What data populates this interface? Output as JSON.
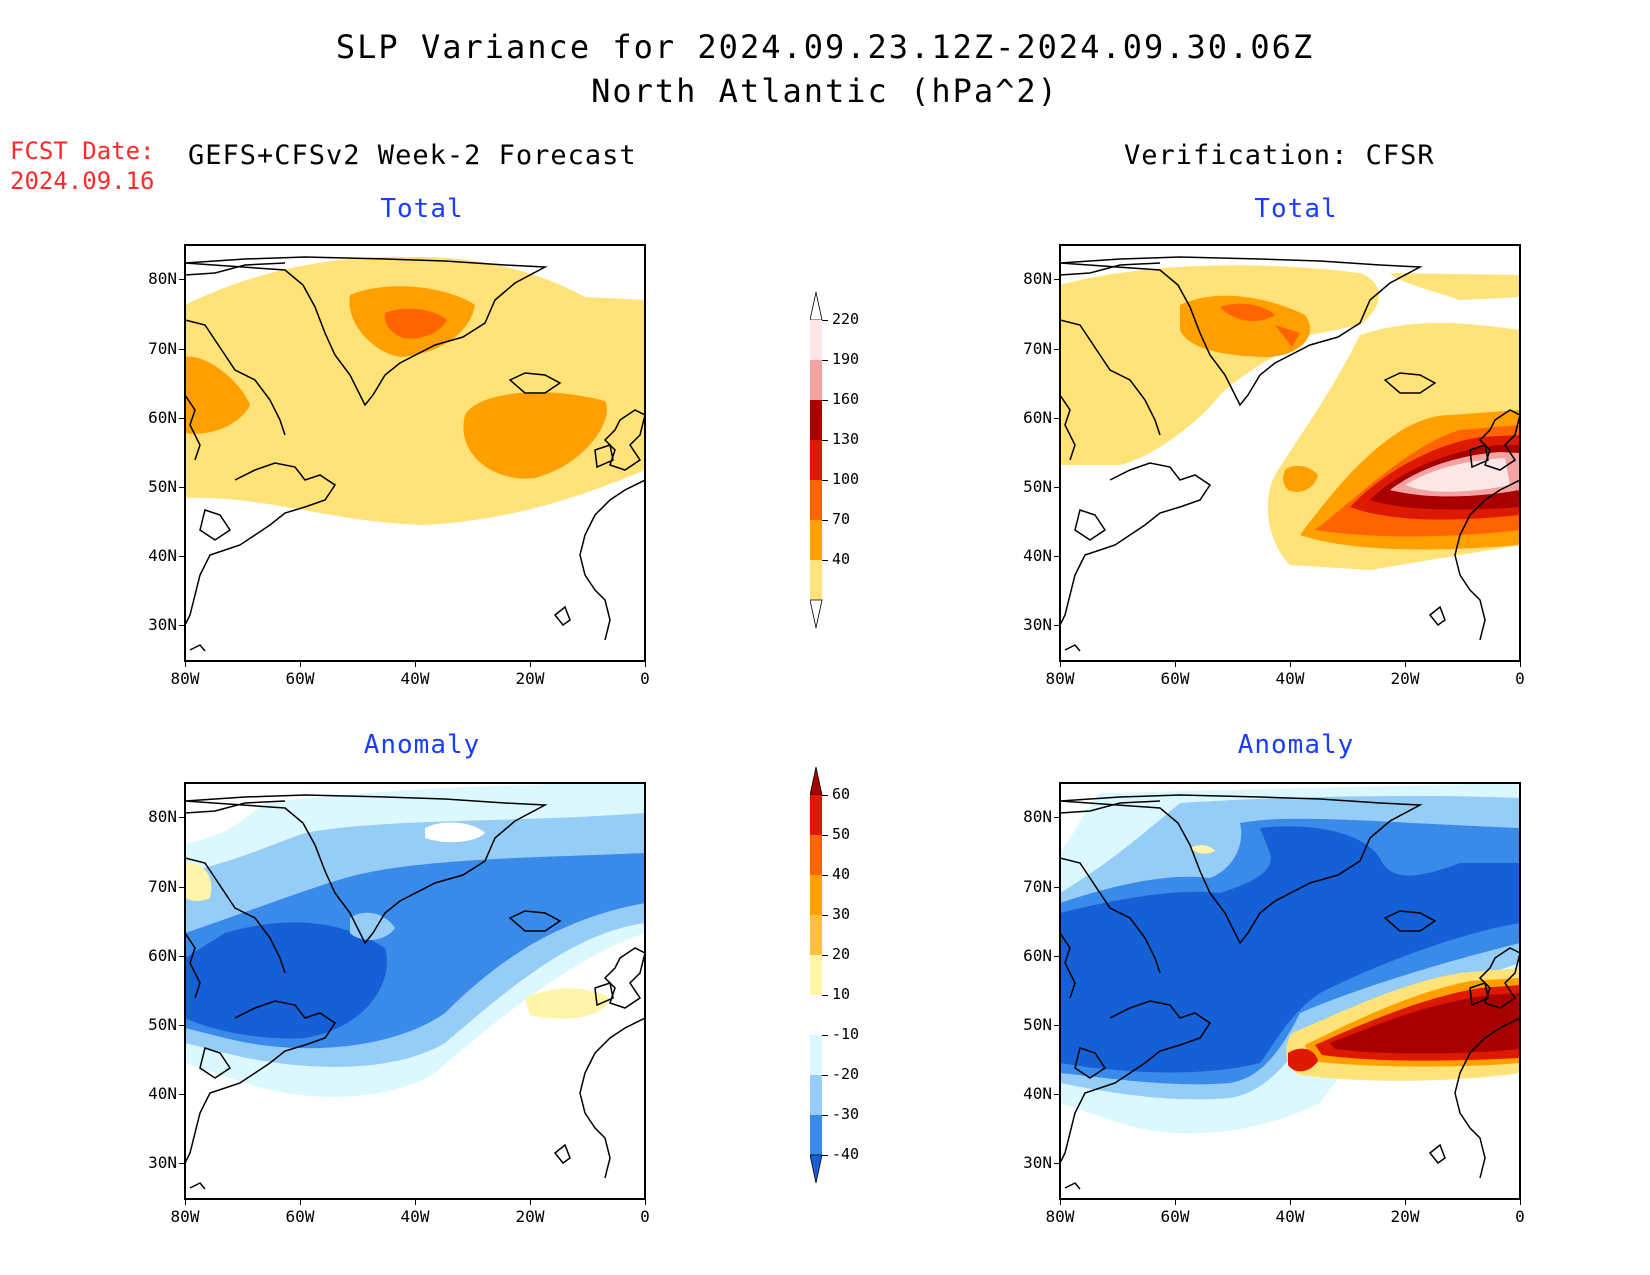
{
  "title": {
    "line1": "SLP Variance for 2024.09.23.12Z-2024.09.30.06Z",
    "line2": "North Atlantic (hPa^2)"
  },
  "fcst": {
    "label": "FCST Date:",
    "date": "2024.09.16"
  },
  "columns": {
    "left": "GEFS+CFSv2 Week-2 Forecast",
    "right": "Verification: CFSR"
  },
  "panels": {
    "total_label": "Total",
    "anomaly_label": "Anomaly"
  },
  "axes": {
    "lat_labels": [
      "80N",
      "70N",
      "60N",
      "50N",
      "40N",
      "30N"
    ],
    "lon_labels": [
      "80W",
      "60W",
      "40W",
      "20W",
      "0"
    ]
  },
  "colorbars": {
    "total": {
      "labels": [
        "220",
        "190",
        "160",
        "130",
        "100",
        "70",
        "40"
      ],
      "colors": [
        "#fde6e6",
        "#f4a3a3",
        "#a80000",
        "#dd1a00",
        "#ff6400",
        "#ff9f00",
        "#ffe278"
      ]
    },
    "anomaly": {
      "labels": [
        "60",
        "50",
        "40",
        "30",
        "20",
        "10",
        "-10",
        "-20",
        "-30",
        "-40"
      ],
      "colors": [
        "#a80000",
        "#dd1a00",
        "#ff6400",
        "#ff9f00",
        "#ffbf40",
        "#fff4a8",
        "#ffffff",
        "#dcf8ff",
        "#96cdf7",
        "#3a8ae9",
        "#1560d6"
      ]
    }
  },
  "map_colors": {
    "yellow": "#ffe278",
    "orange": "#ff9f00",
    "darkorange": "#ff6400",
    "red": "#dd1a00",
    "darkred": "#a80000",
    "pink": "#fde6e6",
    "lightblue": "#dcf8ff",
    "midblue": "#96cdf7",
    "blue": "#3a8ae9",
    "darkblue": "#1560d6",
    "paleyellow": "#fff4a8"
  }
}
